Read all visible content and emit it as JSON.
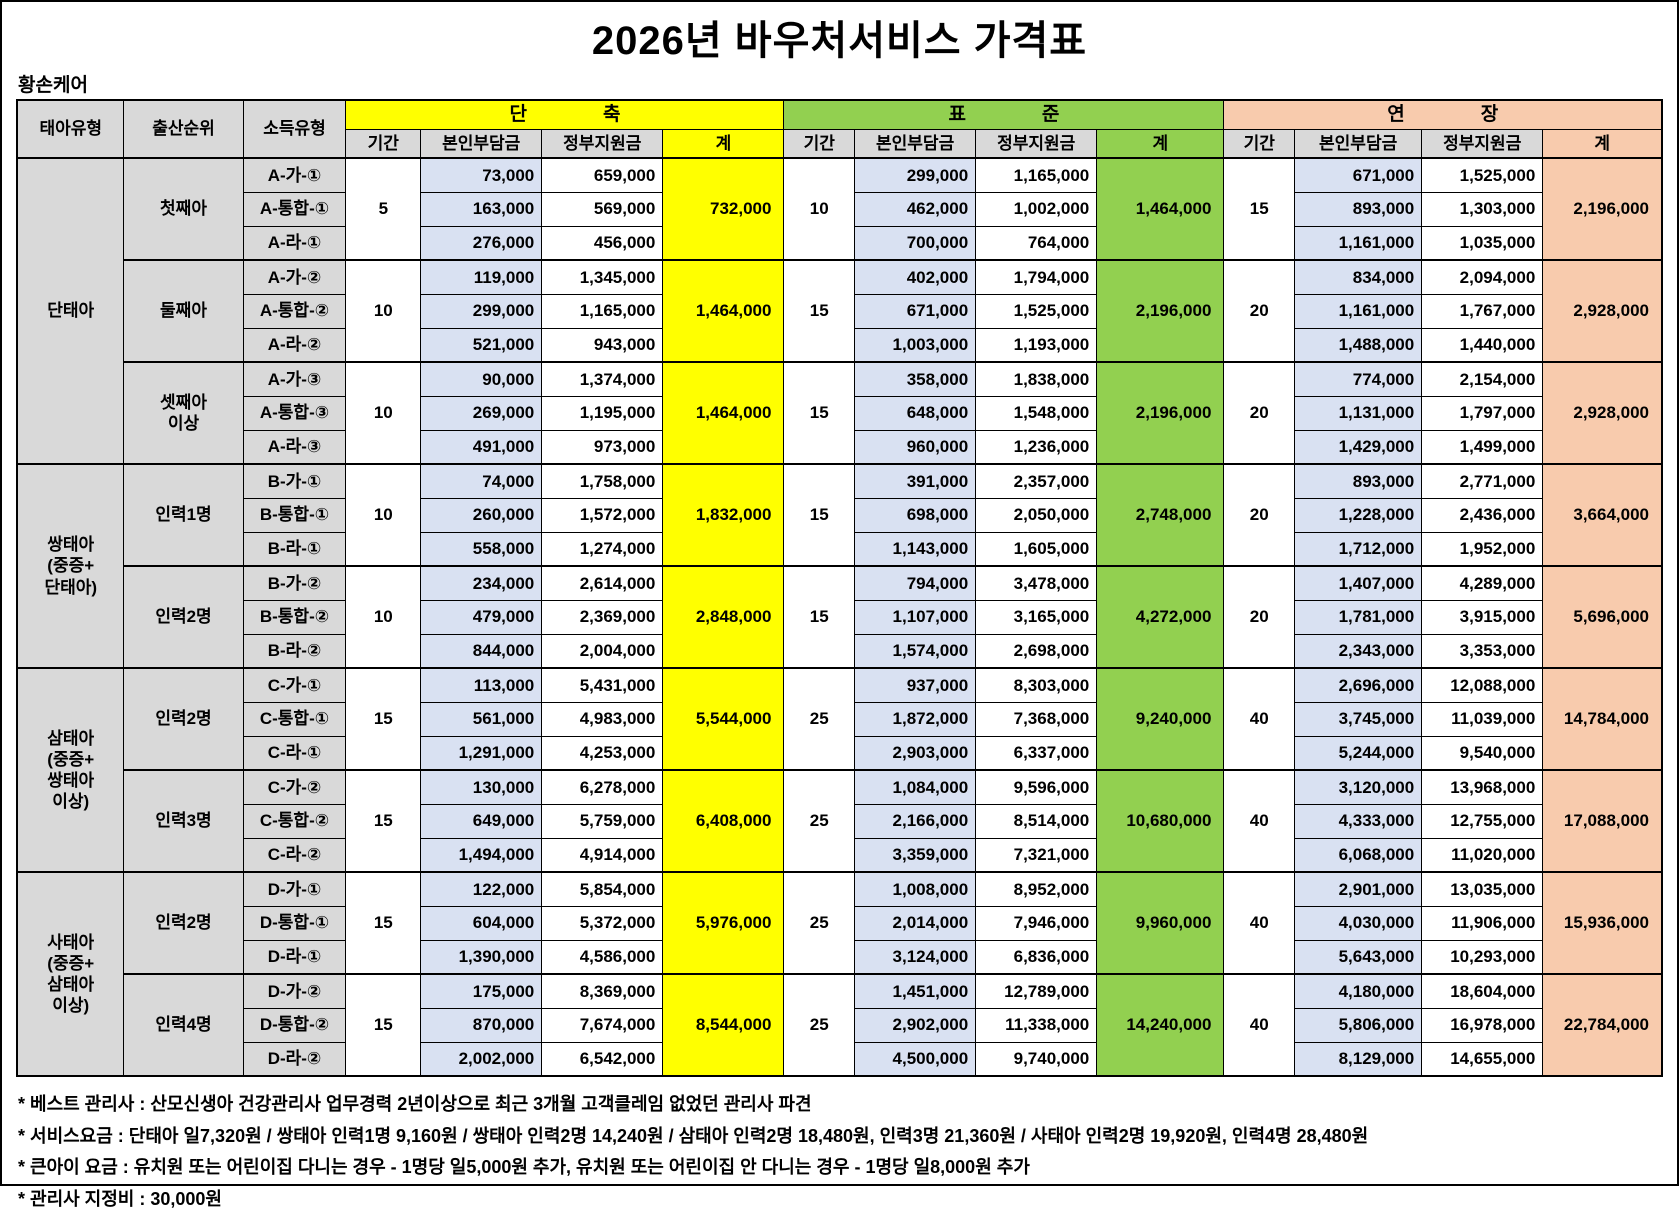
{
  "title": "2026년 바우처서비스 가격표",
  "company": "황손케어",
  "colors": {
    "short": "#ffff00",
    "standard": "#92d050",
    "extended": "#f8cbad",
    "self_pay": "#d9e1f2",
    "header_gray": "#d9d9d9",
    "border": "#000000"
  },
  "table": {
    "left_headers": [
      "태아유형",
      "출산순위",
      "소득유형"
    ],
    "sub_headers": [
      "기간",
      "본인부담금",
      "정부지원금",
      "계"
    ],
    "sections": [
      {
        "key": "short",
        "label": "단　　　　축"
      },
      {
        "key": "standard",
        "label": "표　　　　준"
      },
      {
        "key": "extended",
        "label": "연　　　　장"
      }
    ],
    "groups": [
      {
        "type": "단태아",
        "subgroups": [
          {
            "order": "첫째아",
            "incomes": [
              "A-가-①",
              "A-통합-①",
              "A-라-①"
            ],
            "sections": [
              {
                "period": "5",
                "rows": [
                  [
                    "73,000",
                    "659,000"
                  ],
                  [
                    "163,000",
                    "569,000"
                  ],
                  [
                    "276,000",
                    "456,000"
                  ]
                ],
                "total": "732,000"
              },
              {
                "period": "10",
                "rows": [
                  [
                    "299,000",
                    "1,165,000"
                  ],
                  [
                    "462,000",
                    "1,002,000"
                  ],
                  [
                    "700,000",
                    "764,000"
                  ]
                ],
                "total": "1,464,000"
              },
              {
                "period": "15",
                "rows": [
                  [
                    "671,000",
                    "1,525,000"
                  ],
                  [
                    "893,000",
                    "1,303,000"
                  ],
                  [
                    "1,161,000",
                    "1,035,000"
                  ]
                ],
                "total": "2,196,000"
              }
            ]
          },
          {
            "order": "둘째아",
            "incomes": [
              "A-가-②",
              "A-통합-②",
              "A-라-②"
            ],
            "sections": [
              {
                "period": "10",
                "rows": [
                  [
                    "119,000",
                    "1,345,000"
                  ],
                  [
                    "299,000",
                    "1,165,000"
                  ],
                  [
                    "521,000",
                    "943,000"
                  ]
                ],
                "total": "1,464,000"
              },
              {
                "period": "15",
                "rows": [
                  [
                    "402,000",
                    "1,794,000"
                  ],
                  [
                    "671,000",
                    "1,525,000"
                  ],
                  [
                    "1,003,000",
                    "1,193,000"
                  ]
                ],
                "total": "2,196,000"
              },
              {
                "period": "20",
                "rows": [
                  [
                    "834,000",
                    "2,094,000"
                  ],
                  [
                    "1,161,000",
                    "1,767,000"
                  ],
                  [
                    "1,488,000",
                    "1,440,000"
                  ]
                ],
                "total": "2,928,000"
              }
            ]
          },
          {
            "order": "셋째아\n이상",
            "incomes": [
              "A-가-③",
              "A-통합-③",
              "A-라-③"
            ],
            "sections": [
              {
                "period": "10",
                "rows": [
                  [
                    "90,000",
                    "1,374,000"
                  ],
                  [
                    "269,000",
                    "1,195,000"
                  ],
                  [
                    "491,000",
                    "973,000"
                  ]
                ],
                "total": "1,464,000"
              },
              {
                "period": "15",
                "rows": [
                  [
                    "358,000",
                    "1,838,000"
                  ],
                  [
                    "648,000",
                    "1,548,000"
                  ],
                  [
                    "960,000",
                    "1,236,000"
                  ]
                ],
                "total": "2,196,000"
              },
              {
                "period": "20",
                "rows": [
                  [
                    "774,000",
                    "2,154,000"
                  ],
                  [
                    "1,131,000",
                    "1,797,000"
                  ],
                  [
                    "1,429,000",
                    "1,499,000"
                  ]
                ],
                "total": "2,928,000"
              }
            ]
          }
        ]
      },
      {
        "type": "쌍태아\n(중증+\n단태아)",
        "subgroups": [
          {
            "order": "인력1명",
            "incomes": [
              "B-가-①",
              "B-통합-①",
              "B-라-①"
            ],
            "sections": [
              {
                "period": "10",
                "rows": [
                  [
                    "74,000",
                    "1,758,000"
                  ],
                  [
                    "260,000",
                    "1,572,000"
                  ],
                  [
                    "558,000",
                    "1,274,000"
                  ]
                ],
                "total": "1,832,000"
              },
              {
                "period": "15",
                "rows": [
                  [
                    "391,000",
                    "2,357,000"
                  ],
                  [
                    "698,000",
                    "2,050,000"
                  ],
                  [
                    "1,143,000",
                    "1,605,000"
                  ]
                ],
                "total": "2,748,000"
              },
              {
                "period": "20",
                "rows": [
                  [
                    "893,000",
                    "2,771,000"
                  ],
                  [
                    "1,228,000",
                    "2,436,000"
                  ],
                  [
                    "1,712,000",
                    "1,952,000"
                  ]
                ],
                "total": "3,664,000"
              }
            ]
          },
          {
            "order": "인력2명",
            "incomes": [
              "B-가-②",
              "B-통합-②",
              "B-라-②"
            ],
            "sections": [
              {
                "period": "10",
                "rows": [
                  [
                    "234,000",
                    "2,614,000"
                  ],
                  [
                    "479,000",
                    "2,369,000"
                  ],
                  [
                    "844,000",
                    "2,004,000"
                  ]
                ],
                "total": "2,848,000"
              },
              {
                "period": "15",
                "rows": [
                  [
                    "794,000",
                    "3,478,000"
                  ],
                  [
                    "1,107,000",
                    "3,165,000"
                  ],
                  [
                    "1,574,000",
                    "2,698,000"
                  ]
                ],
                "total": "4,272,000"
              },
              {
                "period": "20",
                "rows": [
                  [
                    "1,407,000",
                    "4,289,000"
                  ],
                  [
                    "1,781,000",
                    "3,915,000"
                  ],
                  [
                    "2,343,000",
                    "3,353,000"
                  ]
                ],
                "total": "5,696,000"
              }
            ]
          }
        ]
      },
      {
        "type": "삼태아\n(중증+\n쌍태아\n이상)",
        "subgroups": [
          {
            "order": "인력2명",
            "incomes": [
              "C-가-①",
              "C-통합-①",
              "C-라-①"
            ],
            "sections": [
              {
                "period": "15",
                "rows": [
                  [
                    "113,000",
                    "5,431,000"
                  ],
                  [
                    "561,000",
                    "4,983,000"
                  ],
                  [
                    "1,291,000",
                    "4,253,000"
                  ]
                ],
                "total": "5,544,000"
              },
              {
                "period": "25",
                "rows": [
                  [
                    "937,000",
                    "8,303,000"
                  ],
                  [
                    "1,872,000",
                    "7,368,000"
                  ],
                  [
                    "2,903,000",
                    "6,337,000"
                  ]
                ],
                "total": "9,240,000"
              },
              {
                "period": "40",
                "rows": [
                  [
                    "2,696,000",
                    "12,088,000"
                  ],
                  [
                    "3,745,000",
                    "11,039,000"
                  ],
                  [
                    "5,244,000",
                    "9,540,000"
                  ]
                ],
                "total": "14,784,000"
              }
            ]
          },
          {
            "order": "인력3명",
            "incomes": [
              "C-가-②",
              "C-통합-②",
              "C-라-②"
            ],
            "sections": [
              {
                "period": "15",
                "rows": [
                  [
                    "130,000",
                    "6,278,000"
                  ],
                  [
                    "649,000",
                    "5,759,000"
                  ],
                  [
                    "1,494,000",
                    "4,914,000"
                  ]
                ],
                "total": "6,408,000"
              },
              {
                "period": "25",
                "rows": [
                  [
                    "1,084,000",
                    "9,596,000"
                  ],
                  [
                    "2,166,000",
                    "8,514,000"
                  ],
                  [
                    "3,359,000",
                    "7,321,000"
                  ]
                ],
                "total": "10,680,000"
              },
              {
                "period": "40",
                "rows": [
                  [
                    "3,120,000",
                    "13,968,000"
                  ],
                  [
                    "4,333,000",
                    "12,755,000"
                  ],
                  [
                    "6,068,000",
                    "11,020,000"
                  ]
                ],
                "total": "17,088,000"
              }
            ]
          }
        ]
      },
      {
        "type": "사태아\n(중증+\n삼태아\n이상)",
        "subgroups": [
          {
            "order": "인력2명",
            "incomes": [
              "D-가-①",
              "D-통합-①",
              "D-라-①"
            ],
            "sections": [
              {
                "period": "15",
                "rows": [
                  [
                    "122,000",
                    "5,854,000"
                  ],
                  [
                    "604,000",
                    "5,372,000"
                  ],
                  [
                    "1,390,000",
                    "4,586,000"
                  ]
                ],
                "total": "5,976,000"
              },
              {
                "period": "25",
                "rows": [
                  [
                    "1,008,000",
                    "8,952,000"
                  ],
                  [
                    "2,014,000",
                    "7,946,000"
                  ],
                  [
                    "3,124,000",
                    "6,836,000"
                  ]
                ],
                "total": "9,960,000"
              },
              {
                "period": "40",
                "rows": [
                  [
                    "2,901,000",
                    "13,035,000"
                  ],
                  [
                    "4,030,000",
                    "11,906,000"
                  ],
                  [
                    "5,643,000",
                    "10,293,000"
                  ]
                ],
                "total": "15,936,000"
              }
            ]
          },
          {
            "order": "인력4명",
            "incomes": [
              "D-가-②",
              "D-통합-②",
              "D-라-②"
            ],
            "sections": [
              {
                "period": "15",
                "rows": [
                  [
                    "175,000",
                    "8,369,000"
                  ],
                  [
                    "870,000",
                    "7,674,000"
                  ],
                  [
                    "2,002,000",
                    "6,542,000"
                  ]
                ],
                "total": "8,544,000"
              },
              {
                "period": "25",
                "rows": [
                  [
                    "1,451,000",
                    "12,789,000"
                  ],
                  [
                    "2,902,000",
                    "11,338,000"
                  ],
                  [
                    "4,500,000",
                    "9,740,000"
                  ]
                ],
                "total": "14,240,000"
              },
              {
                "period": "40",
                "rows": [
                  [
                    "4,180,000",
                    "18,604,000"
                  ],
                  [
                    "5,806,000",
                    "16,978,000"
                  ],
                  [
                    "8,129,000",
                    "14,655,000"
                  ]
                ],
                "total": "22,784,000"
              }
            ]
          }
        ]
      }
    ]
  },
  "notes": [
    "* 베스트 관리사 :  산모신생아 건강관리사 업무경력 2년이상으로 최근 3개월 고객클레임 없었던 관리사 파견",
    "* 서비스요금 : 단태아 일7,320원 / 쌍태아 인력1명 9,160원 / 쌍태아 인력2명 14,240원 / 삼태아 인력2명 18,480원, 인력3명 21,360원 / 사태아 인력2명 19,920원, 인력4명 28,480원",
    "* 큰아이 요금  : 유치원 또는 어린이집 다니는 경우 - 1명당 일5,000원 추가,  유치원 또는 어린이집 안 다니는 경우 - 1명당 일8,000원 추가",
    "* 관리사 지정비 : 30,000원"
  ]
}
